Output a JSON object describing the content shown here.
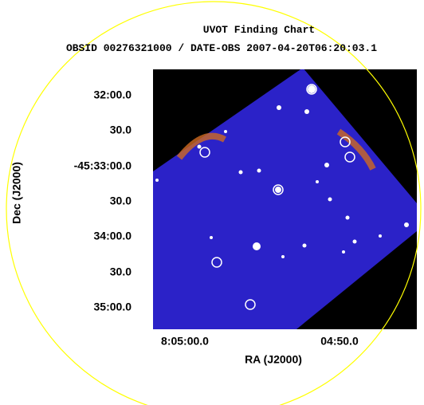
{
  "header": {
    "title": "UVOT Finding Chart",
    "subtitle": "OBSID 00276321000 / DATE-OBS 2007-04-20T06:20:03.1"
  },
  "axes": {
    "y": {
      "label": "Dec (J2000)",
      "ticks": [
        "32:00.0",
        "30.0",
        "-45:33:00.0",
        "30.0",
        "34:00.0",
        "30.0",
        "35:00.0"
      ]
    },
    "x": {
      "label": "RA (J2000)",
      "ticks": [
        "8:05:00.0",
        "04:50.0"
      ]
    }
  }
}
